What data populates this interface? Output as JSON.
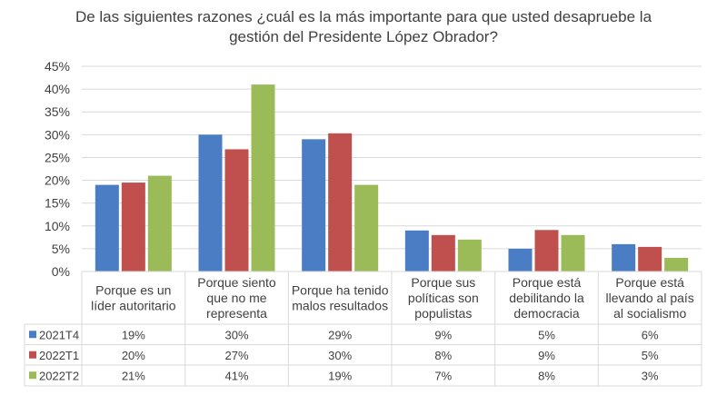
{
  "colors": {
    "series": [
      "#4A7DC3",
      "#C0504D",
      "#9BBB59"
    ],
    "grid": "#D9D9D9",
    "text": "#404040"
  },
  "chart_data": {
    "type": "bar",
    "title_lines": [
      "De las siguientes razones ¿cuál es la más importante para que usted desapruebe la",
      "gestión del Presidente López Obrador?"
    ],
    "categories": [
      [
        "Porque es un",
        "líder autoritario"
      ],
      [
        "Porque siento",
        "que no me",
        "representa"
      ],
      [
        "Porque ha tenido",
        "malos resultados"
      ],
      [
        "Porque sus",
        "políticas son",
        "populistas"
      ],
      [
        "Porque está",
        "debilitando la",
        "democracia"
      ],
      [
        "Porque está",
        "llevando al país",
        "al socialismo"
      ]
    ],
    "series": [
      {
        "name": "2021T4",
        "values": [
          19,
          30,
          29,
          9,
          5,
          6
        ],
        "labels": [
          "19%",
          "30%",
          "29%",
          "9%",
          "5%",
          "6%"
        ]
      },
      {
        "name": "2022T1",
        "values": [
          19.5,
          26.8,
          30.3,
          8,
          9.1,
          5.4
        ],
        "labels": [
          "20%",
          "27%",
          "30%",
          "8%",
          "9%",
          "5%"
        ]
      },
      {
        "name": "2022T2",
        "values": [
          21,
          41,
          19,
          7,
          8,
          3
        ],
        "labels": [
          "21%",
          "41%",
          "19%",
          "7%",
          "8%",
          "3%"
        ]
      }
    ],
    "yticks": [
      "0%",
      "5%",
      "10%",
      "15%",
      "20%",
      "25%",
      "30%",
      "35%",
      "40%",
      "45%"
    ],
    "ylim": [
      0,
      45
    ],
    "grid": true,
    "legend": "data-table-left"
  }
}
